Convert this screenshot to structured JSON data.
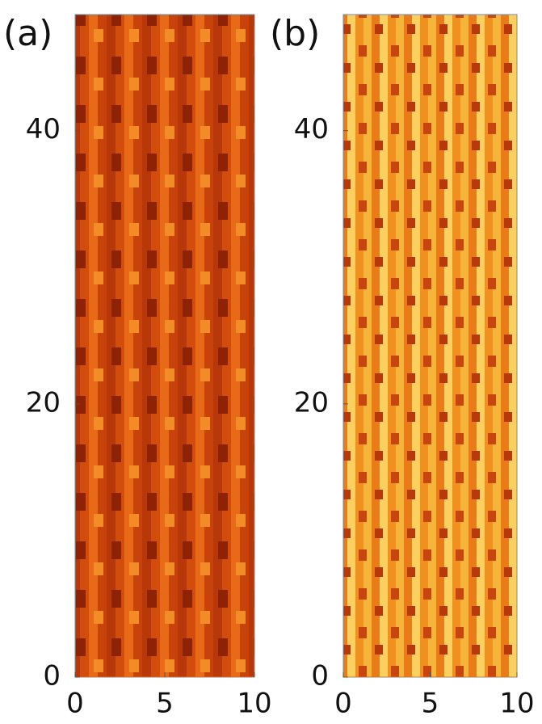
{
  "chart_data": [
    {
      "type": "heatmap",
      "panel_label": "(a)",
      "xlim": [
        0,
        10
      ],
      "xticks": [
        0,
        5,
        10
      ],
      "ylim": [
        0,
        48.5
      ],
      "yticks": [
        0,
        20,
        40
      ]
    },
    {
      "type": "heatmap",
      "panel_label": "(b)",
      "xlim": [
        0,
        10
      ],
      "xticks": [
        0,
        5,
        10
      ],
      "ylim": [
        0,
        48.5
      ],
      "yticks": [
        0,
        20,
        40
      ]
    }
  ]
}
